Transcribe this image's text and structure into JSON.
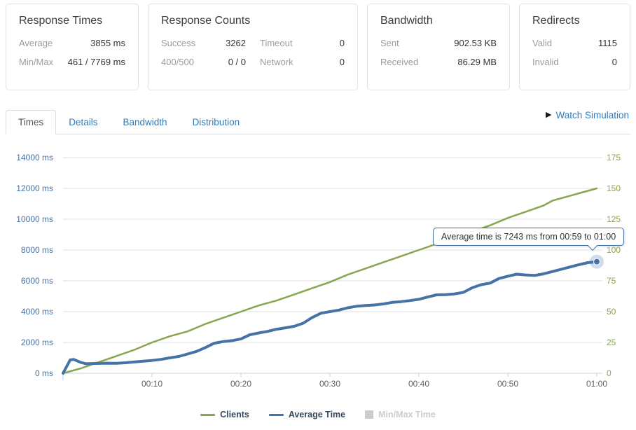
{
  "cards": [
    {
      "title": "Response Times",
      "rows": [
        [
          {
            "label": "Average",
            "value": "3855 ms"
          }
        ],
        [
          {
            "label": "Min/Max",
            "value": "461 / 7769 ms"
          }
        ]
      ]
    },
    {
      "title": "Response Counts",
      "rows": [
        [
          {
            "label": "Success",
            "value": "3262"
          },
          {
            "label": "Timeout",
            "value": "0"
          }
        ],
        [
          {
            "label": "400/500",
            "value": "0 / 0"
          },
          {
            "label": "Network",
            "value": "0"
          }
        ]
      ]
    },
    {
      "title": "Bandwidth",
      "rows": [
        [
          {
            "label": "Sent",
            "value": "902.53 KB"
          }
        ],
        [
          {
            "label": "Received",
            "value": "86.29 MB"
          }
        ]
      ]
    },
    {
      "title": "Redirects",
      "rows": [
        [
          {
            "label": "Valid",
            "value": "1115"
          }
        ],
        [
          {
            "label": "Invalid",
            "value": "0"
          }
        ]
      ]
    }
  ],
  "tabs": [
    {
      "label": "Times",
      "active": true
    },
    {
      "label": "Details",
      "active": false
    },
    {
      "label": "Bandwidth",
      "active": false
    },
    {
      "label": "Distribution",
      "active": false
    }
  ],
  "watch_simulation": {
    "label": "Watch Simulation",
    "icon": "play-icon"
  },
  "tooltip": {
    "text": "Average time is 7243 ms from 00:59 to 01:00",
    "x_minute": 60,
    "value_ms": 7243
  },
  "colors": {
    "accent_link": "#337ab7",
    "series_avg_time": "#4572a7",
    "series_clients": "#89a54e",
    "series_minmax_hidden": "#cccccc",
    "grid_line": "#dfdfdf",
    "axis_line": "#c0d0e0",
    "x_label": "#606060",
    "legend_text": "#35495e"
  },
  "chart_data": {
    "type": "line",
    "title": "",
    "x_axis": {
      "unit": "mm:ss",
      "range_minutes": [
        0,
        60
      ],
      "tick_minutes": [
        10,
        20,
        30,
        40,
        50,
        60
      ],
      "tick_labels": [
        "00:10",
        "00:20",
        "00:30",
        "00:40",
        "00:50",
        "01:00"
      ]
    },
    "y_axis_left": {
      "unit": "ms",
      "range": [
        0,
        14000
      ],
      "color": "#4572a7",
      "labels_top_to_bottom": [
        "14000 ms",
        "12000 ms",
        "10000 ms",
        "8000 ms",
        "6000 ms",
        "4000 ms",
        "2000 ms",
        "0 ms"
      ]
    },
    "y_axis_right": {
      "unit": "clients",
      "range": [
        0,
        175
      ],
      "color": "#89a54e",
      "labels_top_to_bottom": [
        "175",
        "150",
        "125",
        "100",
        "75",
        "50",
        "25",
        "0"
      ]
    },
    "grid": true,
    "legend_position": "bottom-center",
    "series": [
      {
        "name": "Clients",
        "color": "#89a54e",
        "axis": "right",
        "hidden": false,
        "line_width": 2.5,
        "points": [
          [
            0,
            0
          ],
          [
            2,
            4
          ],
          [
            4,
            9
          ],
          [
            6,
            14
          ],
          [
            8,
            19
          ],
          [
            10,
            25
          ],
          [
            12,
            30
          ],
          [
            14,
            34
          ],
          [
            16,
            40
          ],
          [
            18,
            45
          ],
          [
            20,
            50
          ],
          [
            22,
            55
          ],
          [
            24,
            59
          ],
          [
            26,
            64
          ],
          [
            28,
            69
          ],
          [
            30,
            74
          ],
          [
            32,
            80
          ],
          [
            34,
            85
          ],
          [
            36,
            90
          ],
          [
            38,
            95
          ],
          [
            40,
            100
          ],
          [
            42,
            105
          ],
          [
            44,
            110
          ],
          [
            46,
            115
          ],
          [
            48,
            120
          ],
          [
            50,
            126
          ],
          [
            52,
            131
          ],
          [
            54,
            136
          ],
          [
            55,
            140
          ],
          [
            56,
            142
          ],
          [
            57,
            144
          ],
          [
            58,
            146
          ],
          [
            59,
            148
          ],
          [
            60,
            150
          ]
        ]
      },
      {
        "name": "Average Time",
        "color": "#4572a7",
        "axis": "left",
        "hidden": false,
        "line_width": 4,
        "points": [
          [
            0,
            0
          ],
          [
            0.8,
            870
          ],
          [
            1.2,
            900
          ],
          [
            2,
            700
          ],
          [
            2.6,
            620
          ],
          [
            3.5,
            635
          ],
          [
            5,
            655
          ],
          [
            6,
            645
          ],
          [
            7,
            680
          ],
          [
            8,
            730
          ],
          [
            9,
            780
          ],
          [
            10,
            830
          ],
          [
            11,
            900
          ],
          [
            12,
            1000
          ],
          [
            13,
            1090
          ],
          [
            14,
            1250
          ],
          [
            15,
            1420
          ],
          [
            16,
            1670
          ],
          [
            17,
            1950
          ],
          [
            18,
            2060
          ],
          [
            19,
            2120
          ],
          [
            20,
            2230
          ],
          [
            21,
            2500
          ],
          [
            22,
            2620
          ],
          [
            23,
            2720
          ],
          [
            24,
            2860
          ],
          [
            25,
            2950
          ],
          [
            26,
            3050
          ],
          [
            27,
            3250
          ],
          [
            28,
            3620
          ],
          [
            29,
            3900
          ],
          [
            30,
            4000
          ],
          [
            31,
            4100
          ],
          [
            32,
            4250
          ],
          [
            33,
            4350
          ],
          [
            34,
            4400
          ],
          [
            35,
            4430
          ],
          [
            36,
            4500
          ],
          [
            37,
            4600
          ],
          [
            38,
            4650
          ],
          [
            39,
            4720
          ],
          [
            40,
            4800
          ],
          [
            41,
            4950
          ],
          [
            42,
            5090
          ],
          [
            43,
            5100
          ],
          [
            44,
            5150
          ],
          [
            45,
            5250
          ],
          [
            46,
            5550
          ],
          [
            47,
            5750
          ],
          [
            48,
            5850
          ],
          [
            49,
            6150
          ],
          [
            50,
            6300
          ],
          [
            51,
            6430
          ],
          [
            52,
            6380
          ],
          [
            53,
            6350
          ],
          [
            54,
            6450
          ],
          [
            55,
            6600
          ],
          [
            56,
            6750
          ],
          [
            57,
            6900
          ],
          [
            58,
            7050
          ],
          [
            59,
            7180
          ],
          [
            60,
            7243
          ]
        ]
      },
      {
        "name": "Min/Max Time",
        "color": "#cccccc",
        "axis": "left",
        "hidden": true,
        "line_width": 0,
        "points": []
      }
    ]
  }
}
